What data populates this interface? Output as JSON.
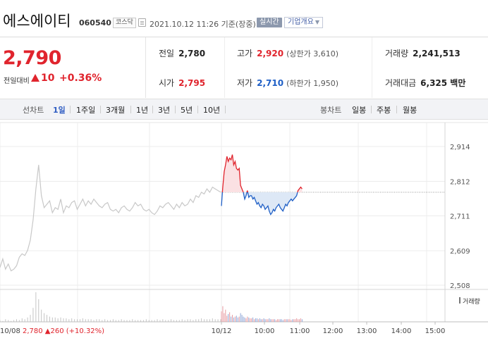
{
  "header": {
    "name": "에스에이티",
    "code": "060540",
    "market": "코스닥",
    "datetime": "2021.10.12 11:26 기준(장중)",
    "realtime": "실시간",
    "company_btn": "기업개요"
  },
  "price": {
    "current": "2,790",
    "change_label": "전일대비",
    "change_abs": "10",
    "change_pct": "+0.36%"
  },
  "stats": {
    "prev_label": "전일",
    "prev": "2,780",
    "open_label": "시가",
    "open": "2,795",
    "high_label": "고가",
    "high": "2,920",
    "upper_limit": "(상한가 3,610)",
    "low_label": "저가",
    "low": "2,710",
    "lower_limit": "(하한가 1,950)",
    "volume_label": "거래량",
    "volume": "2,241,513",
    "amount_label": "거래대금",
    "amount": "6,325 백만"
  },
  "tabs": {
    "line_label": "선차트",
    "periods": [
      "1일",
      "1주일",
      "3개월",
      "1년",
      "3년",
      "5년",
      "10년"
    ],
    "candle_label": "봉차트",
    "candles": [
      "일봉",
      "주봉",
      "월봉"
    ]
  },
  "chart_data": {
    "type": "line",
    "y_ticks": [
      "2,914",
      "2,812",
      "2,711",
      "2,609",
      "2,508"
    ],
    "ylim": [
      2508,
      2914
    ],
    "x_ticks": [
      "10/12",
      "10:00",
      "11:00",
      "12:00",
      "13:00",
      "14:00",
      "15:00"
    ],
    "prev_session": {
      "label": "10/08",
      "close": "2,780",
      "change": "260",
      "change_pct": "(+10.32%)",
      "values": [
        2560,
        2585,
        2555,
        2570,
        2550,
        2555,
        2565,
        2590,
        2600,
        2595,
        2610,
        2640,
        2700,
        2790,
        2860,
        2770,
        2735,
        2745,
        2755,
        2720,
        2735,
        2730,
        2760,
        2720,
        2740,
        2735,
        2750,
        2755,
        2730,
        2745,
        2760,
        2740,
        2755,
        2745,
        2760,
        2750,
        2740,
        2735,
        2745,
        2750,
        2730,
        2725,
        2730,
        2720,
        2735,
        2740,
        2730,
        2725,
        2735,
        2750,
        2740,
        2745,
        2730,
        2725,
        2730,
        2720,
        2715,
        2725,
        2740,
        2735,
        2745,
        2750,
        2740,
        2730,
        2745,
        2735,
        2750,
        2740,
        2745,
        2760,
        2750,
        2770,
        2765,
        2780,
        2775,
        2790,
        2780,
        2795,
        2790,
        2785,
        2780
      ]
    },
    "prev_close": 2780,
    "today_values": [
      2740,
      2795,
      2840,
      2860,
      2885,
      2870,
      2880,
      2875,
      2890,
      2860,
      2870,
      2850,
      2845,
      2850,
      2800,
      2790,
      2780,
      2760,
      2770,
      2785,
      2765,
      2770,
      2770,
      2760,
      2765,
      2755,
      2745,
      2750,
      2740,
      2735,
      2745,
      2740,
      2730,
      2735,
      2740,
      2725,
      2715,
      2720,
      2730,
      2725,
      2735,
      2740,
      2745,
      2735,
      2730,
      2725,
      2735,
      2745,
      2740,
      2750,
      2755,
      2760,
      2755,
      2760,
      2765,
      2770,
      2785,
      2790,
      2795,
      2790
    ],
    "volume_legend": "거래량",
    "prev_volume": [
      2,
      1,
      3,
      2,
      1,
      2,
      3,
      2,
      4,
      3,
      5,
      8,
      16,
      34,
      26,
      14,
      10,
      8,
      6,
      5,
      5,
      4,
      5,
      4,
      4,
      3,
      4,
      3,
      3,
      3,
      4,
      3,
      3,
      3,
      2,
      3,
      3,
      2,
      3,
      2,
      2,
      3,
      2,
      2,
      3,
      2,
      2,
      2,
      3,
      2,
      2,
      2,
      2,
      3,
      2,
      2,
      2,
      3,
      2,
      3,
      2,
      2,
      3,
      2,
      2,
      2,
      3,
      2,
      3,
      3,
      2,
      3,
      3,
      4,
      3,
      3,
      3,
      4,
      3,
      3,
      3
    ],
    "today_volume": [
      12,
      18,
      10,
      14,
      7,
      9,
      11,
      6,
      8,
      5,
      6,
      7,
      5,
      6,
      10,
      8,
      6,
      5,
      4,
      6,
      5,
      4,
      4,
      5,
      3,
      4,
      4,
      3,
      4,
      3,
      3,
      4,
      3,
      3,
      3,
      4,
      3,
      3,
      3,
      3,
      2,
      3,
      3,
      3,
      3,
      2,
      3,
      3,
      3,
      3,
      3,
      2,
      3,
      3,
      3,
      4,
      3,
      3,
      4,
      3
    ]
  }
}
